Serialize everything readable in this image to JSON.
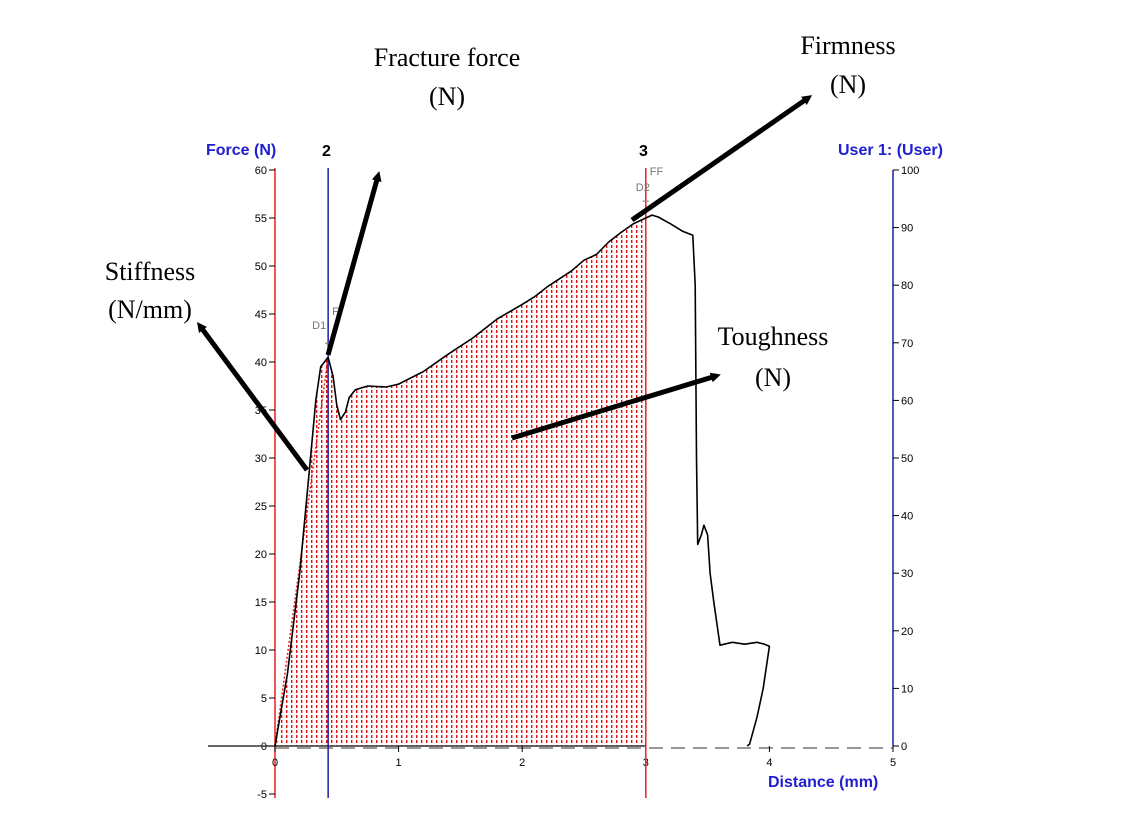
{
  "chart_data": {
    "type": "line",
    "left_axis": {
      "title": "Force (N)",
      "range": [
        -5,
        60
      ],
      "ticks": [
        -5,
        0,
        5,
        10,
        15,
        20,
        25,
        30,
        35,
        40,
        45,
        50,
        55,
        60
      ],
      "tick_labels": [
        "-5",
        "0",
        "5",
        "10",
        "15",
        "20",
        "25",
        "30",
        "35",
        "40",
        "45",
        "50",
        "55",
        "60"
      ]
    },
    "right_axis": {
      "title": "User 1: (User)",
      "range": [
        0,
        100
      ],
      "ticks": [
        0,
        10,
        20,
        30,
        40,
        50,
        60,
        70,
        80,
        90,
        100
      ],
      "tick_labels": [
        "0",
        "10",
        "20",
        "30",
        "40",
        "50",
        "60",
        "70",
        "80",
        "90",
        "100"
      ]
    },
    "x_axis": {
      "title": "Distance (mm)",
      "range": [
        0,
        5
      ],
      "ticks": [
        0,
        1,
        2,
        3,
        4,
        5
      ],
      "tick_labels": [
        "0",
        "1",
        "2",
        "3",
        "4",
        "5"
      ]
    },
    "series": [
      {
        "points": [
          [
            0,
            0
          ],
          [
            0.1,
            7.5
          ],
          [
            0.2,
            18
          ],
          [
            0.28,
            29
          ],
          [
            0.33,
            36
          ],
          [
            0.37,
            39.5
          ],
          [
            0.43,
            40.5
          ],
          [
            0.47,
            38.5
          ],
          [
            0.5,
            35.5
          ],
          [
            0.53,
            34.0
          ],
          [
            0.57,
            34.8
          ],
          [
            0.6,
            36.3
          ],
          [
            0.65,
            37.1
          ],
          [
            0.75,
            37.5
          ],
          [
            0.9,
            37.4
          ],
          [
            1.0,
            37.7
          ],
          [
            1.2,
            39.0
          ],
          [
            1.4,
            40.8
          ],
          [
            1.6,
            42.5
          ],
          [
            1.8,
            44.5
          ],
          [
            2.0,
            46.0
          ],
          [
            2.1,
            46.8
          ],
          [
            2.2,
            47.8
          ],
          [
            2.4,
            49.5
          ],
          [
            2.5,
            50.6
          ],
          [
            2.6,
            51.2
          ],
          [
            2.7,
            52.5
          ],
          [
            2.8,
            53.5
          ],
          [
            2.9,
            54.4
          ],
          [
            3.0,
            55.0
          ],
          [
            3.05,
            55.3
          ],
          [
            3.1,
            55.1
          ],
          [
            3.2,
            54.4
          ],
          [
            3.3,
            53.6
          ],
          [
            3.38,
            53.2
          ],
          [
            3.4,
            48.0
          ],
          [
            3.41,
            30.0
          ],
          [
            3.42,
            21.0
          ],
          [
            3.45,
            22.0
          ],
          [
            3.47,
            23.0
          ],
          [
            3.5,
            22.0
          ],
          [
            3.52,
            18.0
          ],
          [
            3.55,
            15.0
          ],
          [
            3.6,
            10.5
          ],
          [
            3.7,
            10.8
          ],
          [
            3.8,
            10.6
          ],
          [
            3.9,
            10.8
          ],
          [
            3.96,
            10.6
          ],
          [
            4.0,
            10.4
          ],
          [
            3.95,
            6.0
          ],
          [
            3.9,
            3.0
          ],
          [
            3.84,
            0.2
          ],
          [
            3.82,
            0
          ]
        ]
      }
    ],
    "shaded_area": {
      "from_x": 0,
      "to_x": 3.0
    },
    "markers": [
      {
        "label": "2",
        "x": 0.43
      },
      {
        "label": "3",
        "x": 3.0
      }
    ],
    "point_labels": [
      {
        "label": "D1",
        "x": 0.43,
        "y": 40.5
      },
      {
        "label": "F",
        "x": 0.43,
        "y": 40.5
      },
      {
        "label": "D2",
        "x": 3.0,
        "y": 55.3
      },
      {
        "label": "FF",
        "x": 3.0,
        "y": 55.3
      }
    ],
    "baseline_x": {
      "range": [
        0,
        5
      ],
      "value": 0,
      "style": "dashed"
    },
    "annotations": [
      {
        "text_lines": [
          "Fracture force",
          "(N)"
        ]
      },
      {
        "text_lines": [
          "Firmness",
          "(N)"
        ]
      },
      {
        "text_lines": [
          "Stiffness",
          "(N/mm)"
        ]
      },
      {
        "text_lines": [
          "Toughness",
          "(N)"
        ]
      }
    ],
    "colors": {
      "curve": "#000000",
      "axis_title": "#2020d0",
      "red_marker": "#e82020",
      "blue_marker": "#2020a0",
      "fill": "#e01010"
    }
  }
}
